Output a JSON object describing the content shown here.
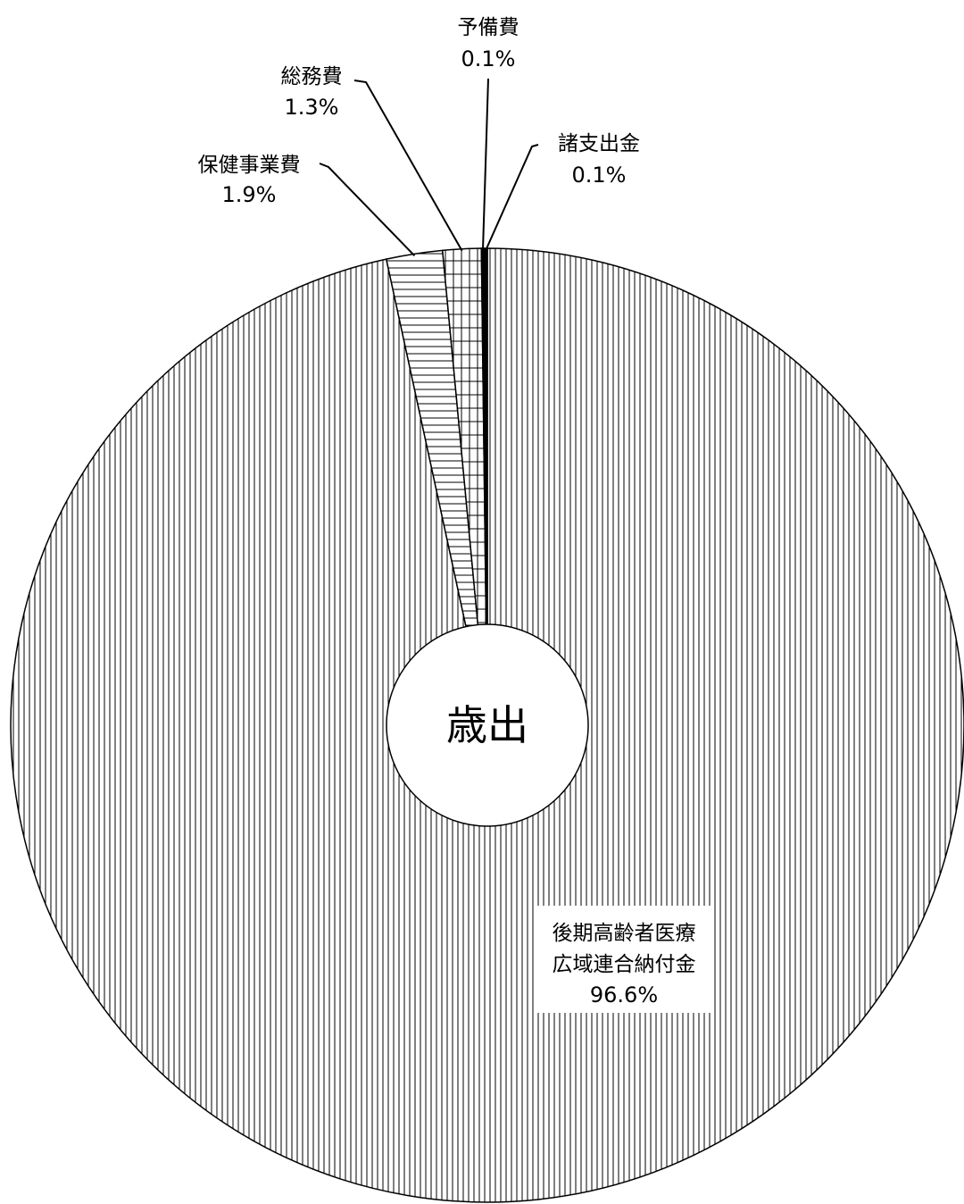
{
  "chart_data": {
    "type": "pie",
    "center_label": "歳出",
    "slices": [
      {
        "name": "後期高齢者医療\n広域連合納付金",
        "line1": "後期高齢者医療",
        "line2": "広域連合納付金",
        "percent_label": "96.6%",
        "value": 96.6,
        "pattern": "vertical-lines"
      },
      {
        "name": "保健事業費",
        "percent_label": "1.9%",
        "value": 1.9,
        "pattern": "horizontal-lines"
      },
      {
        "name": "総務費",
        "percent_label": "1.3%",
        "value": 1.3,
        "pattern": "grid"
      },
      {
        "name": "予備費",
        "percent_label": "0.1%",
        "value": 0.1,
        "pattern": "solid"
      },
      {
        "name": "諸支出金",
        "percent_label": "0.1%",
        "value": 0.1,
        "pattern": "solid"
      }
    ]
  }
}
